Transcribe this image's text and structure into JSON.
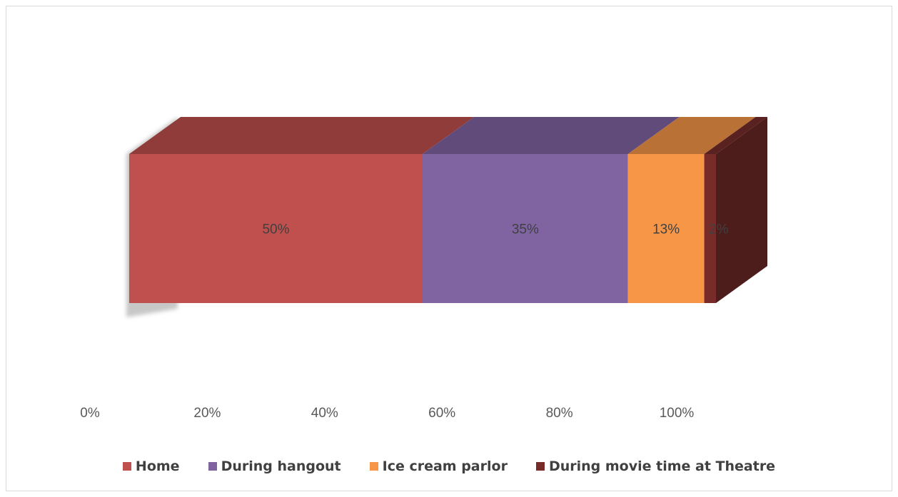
{
  "chart_data": {
    "type": "bar",
    "orientation": "horizontal",
    "stacked": "100%",
    "three_d": true,
    "categories": [
      ""
    ],
    "series": [
      {
        "name": "Home",
        "values": [
          50
        ],
        "label": "50%",
        "color": "#c0504d"
      },
      {
        "name": "During hangout",
        "values": [
          35
        ],
        "label": "35%",
        "color": "#8064a2"
      },
      {
        "name": "Ice cream parlor",
        "values": [
          13
        ],
        "label": "13%",
        "color": "#f79646"
      },
      {
        "name": "During movie time at Theatre",
        "values": [
          2
        ],
        "label": "2%",
        "color": "#772c2a"
      }
    ],
    "xlim": [
      0,
      100
    ],
    "x_ticks": [
      "0%",
      "20%",
      "40%",
      "60%",
      "80%",
      "100%"
    ],
    "grid": false,
    "legend_position": "bottom",
    "title": "",
    "xlabel": "",
    "ylabel": ""
  }
}
